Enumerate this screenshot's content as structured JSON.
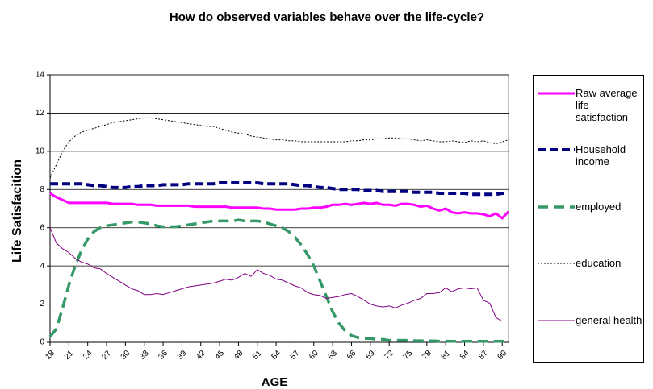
{
  "chart_data": {
    "type": "line",
    "title": "How do observed variables behave over the life-cycle?",
    "x_label": "AGE",
    "y_label": "Life Satisfacition",
    "x": [
      18,
      19,
      20,
      21,
      22,
      23,
      24,
      25,
      26,
      27,
      28,
      29,
      30,
      31,
      32,
      33,
      34,
      35,
      36,
      37,
      38,
      39,
      40,
      41,
      42,
      43,
      44,
      45,
      46,
      47,
      48,
      49,
      50,
      51,
      52,
      53,
      54,
      55,
      56,
      57,
      58,
      59,
      60,
      61,
      62,
      63,
      64,
      65,
      66,
      67,
      68,
      69,
      70,
      71,
      72,
      73,
      74,
      75,
      76,
      77,
      78,
      79,
      80,
      81,
      82,
      83,
      84,
      85,
      86,
      87,
      88,
      89,
      90,
      91
    ],
    "xlim": [
      18,
      91
    ],
    "xticks": [
      18,
      21,
      24,
      27,
      30,
      33,
      36,
      39,
      42,
      45,
      48,
      51,
      54,
      57,
      60,
      63,
      66,
      69,
      72,
      75,
      78,
      81,
      84,
      87,
      90
    ],
    "ylim": [
      0,
      14
    ],
    "yticks": [
      0,
      2,
      4,
      6,
      8,
      10,
      12,
      14
    ],
    "grid": true,
    "legend": "right",
    "series": [
      {
        "name": "Raw average life satisfaction",
        "color": "#ff00ff",
        "style": "solid",
        "width": 3,
        "values": [
          7.8,
          7.6,
          7.45,
          7.3,
          7.3,
          7.3,
          7.3,
          7.3,
          7.3,
          7.3,
          7.25,
          7.25,
          7.25,
          7.25,
          7.2,
          7.2,
          7.2,
          7.15,
          7.15,
          7.15,
          7.15,
          7.15,
          7.15,
          7.1,
          7.1,
          7.1,
          7.1,
          7.1,
          7.1,
          7.05,
          7.05,
          7.05,
          7.05,
          7.05,
          7.0,
          7.0,
          6.95,
          6.95,
          6.95,
          6.95,
          7.0,
          7.0,
          7.05,
          7.05,
          7.1,
          7.2,
          7.2,
          7.25,
          7.2,
          7.25,
          7.3,
          7.25,
          7.3,
          7.2,
          7.2,
          7.15,
          7.25,
          7.25,
          7.2,
          7.1,
          7.15,
          7.0,
          6.9,
          7.0,
          6.8,
          6.75,
          6.8,
          6.75,
          6.75,
          6.7,
          6.6,
          6.75,
          6.5,
          6.85
        ]
      },
      {
        "name": "Household income",
        "color": "#000080",
        "style": "dashed",
        "width": 4,
        "values": [
          8.3,
          8.3,
          8.3,
          8.3,
          8.3,
          8.3,
          8.25,
          8.2,
          8.2,
          8.15,
          8.1,
          8.1,
          8.1,
          8.15,
          8.15,
          8.2,
          8.2,
          8.2,
          8.25,
          8.25,
          8.25,
          8.25,
          8.3,
          8.3,
          8.3,
          8.3,
          8.3,
          8.35,
          8.35,
          8.35,
          8.35,
          8.35,
          8.35,
          8.35,
          8.3,
          8.3,
          8.3,
          8.3,
          8.3,
          8.25,
          8.2,
          8.2,
          8.15,
          8.1,
          8.1,
          8.05,
          8.0,
          8.0,
          8.0,
          8.0,
          7.95,
          7.95,
          7.95,
          7.9,
          7.9,
          7.9,
          7.9,
          7.9,
          7.85,
          7.85,
          7.85,
          7.85,
          7.8,
          7.8,
          7.8,
          7.8,
          7.8,
          7.75,
          7.75,
          7.75,
          7.75,
          7.75,
          7.8,
          7.8
        ]
      },
      {
        "name": "employed",
        "color": "#339966",
        "style": "longdash",
        "width": 3.5,
        "values": [
          0.3,
          0.7,
          1.8,
          3.0,
          4.0,
          4.8,
          5.4,
          5.8,
          6.0,
          6.1,
          6.15,
          6.2,
          6.25,
          6.3,
          6.3,
          6.25,
          6.2,
          6.1,
          6.05,
          6.05,
          6.05,
          6.1,
          6.15,
          6.2,
          6.25,
          6.3,
          6.35,
          6.35,
          6.35,
          6.35,
          6.4,
          6.35,
          6.35,
          6.35,
          6.3,
          6.2,
          6.1,
          6.0,
          5.8,
          5.5,
          5.1,
          4.6,
          4.0,
          3.2,
          2.4,
          1.6,
          1.0,
          0.6,
          0.35,
          0.25,
          0.2,
          0.2,
          0.15,
          0.15,
          0.1,
          0.1,
          0.1,
          0.1,
          0.08,
          0.08,
          0.07,
          0.07,
          0.06,
          0.06,
          0.05,
          0.05,
          0.05,
          0.05,
          0.05,
          0.05,
          0.05,
          0.05,
          0.05,
          0.05
        ]
      },
      {
        "name": "education",
        "color": "#000000",
        "style": "dotted",
        "width": 1,
        "values": [
          8.6,
          9.3,
          10.0,
          10.5,
          10.8,
          11.0,
          11.1,
          11.2,
          11.3,
          11.4,
          11.5,
          11.55,
          11.6,
          11.65,
          11.7,
          11.75,
          11.75,
          11.7,
          11.65,
          11.6,
          11.55,
          11.5,
          11.45,
          11.4,
          11.35,
          11.3,
          11.3,
          11.2,
          11.1,
          11.0,
          10.95,
          10.9,
          10.8,
          10.75,
          10.7,
          10.65,
          10.6,
          10.6,
          10.55,
          10.55,
          10.5,
          10.5,
          10.5,
          10.5,
          10.5,
          10.5,
          10.5,
          10.5,
          10.55,
          10.55,
          10.6,
          10.6,
          10.65,
          10.65,
          10.7,
          10.7,
          10.65,
          10.65,
          10.6,
          10.55,
          10.6,
          10.55,
          10.5,
          10.5,
          10.55,
          10.5,
          10.45,
          10.55,
          10.5,
          10.55,
          10.45,
          10.4,
          10.5,
          10.6
        ]
      },
      {
        "name": "general health",
        "color": "#800080",
        "style": "solid",
        "width": 1,
        "values": [
          6.0,
          5.2,
          4.9,
          4.7,
          4.4,
          4.2,
          4.1,
          3.9,
          3.85,
          3.6,
          3.4,
          3.2,
          3.0,
          2.8,
          2.7,
          2.5,
          2.5,
          2.55,
          2.5,
          2.6,
          2.7,
          2.8,
          2.9,
          2.95,
          3.0,
          3.05,
          3.1,
          3.2,
          3.3,
          3.25,
          3.4,
          3.6,
          3.45,
          3.8,
          3.6,
          3.5,
          3.3,
          3.25,
          3.1,
          2.95,
          2.85,
          2.6,
          2.5,
          2.45,
          2.3,
          2.35,
          2.4,
          2.5,
          2.55,
          2.4,
          2.2,
          2.0,
          1.9,
          1.85,
          1.9,
          1.8,
          1.95,
          2.05,
          2.2,
          2.3,
          2.55,
          2.55,
          2.6,
          2.85,
          2.65,
          2.8,
          2.85,
          2.8,
          2.85,
          2.2,
          2.05,
          1.3,
          1.1,
          null
        ]
      }
    ]
  }
}
